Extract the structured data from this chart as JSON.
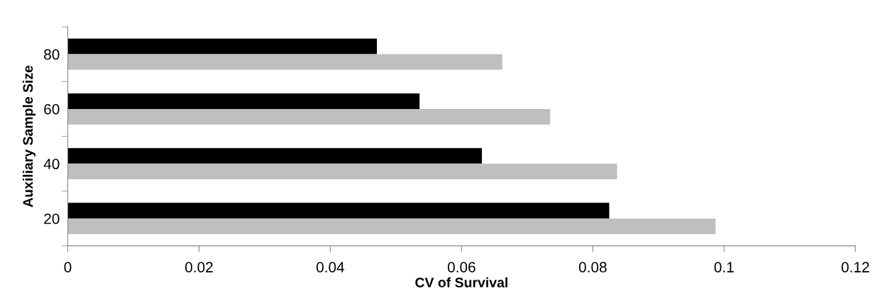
{
  "chart_data": {
    "type": "bar",
    "orientation": "horizontal",
    "xlabel": "CV of Survival",
    "ylabel": "Auxiliary Sample Size",
    "categories": [
      "80",
      "60",
      "40",
      "20"
    ],
    "series": [
      {
        "color": "#000000",
        "values": [
          0.0471,
          0.0536,
          0.0631,
          0.0825
        ]
      },
      {
        "color": "#bfbfbf",
        "values": [
          0.0662,
          0.0735,
          0.0837,
          0.0987
        ]
      }
    ],
    "xlim": [
      0,
      0.12
    ],
    "xticks": [
      0,
      0.02,
      0.04,
      0.06,
      0.08,
      0.1,
      0.12
    ],
    "grid": false,
    "legend": false
  }
}
